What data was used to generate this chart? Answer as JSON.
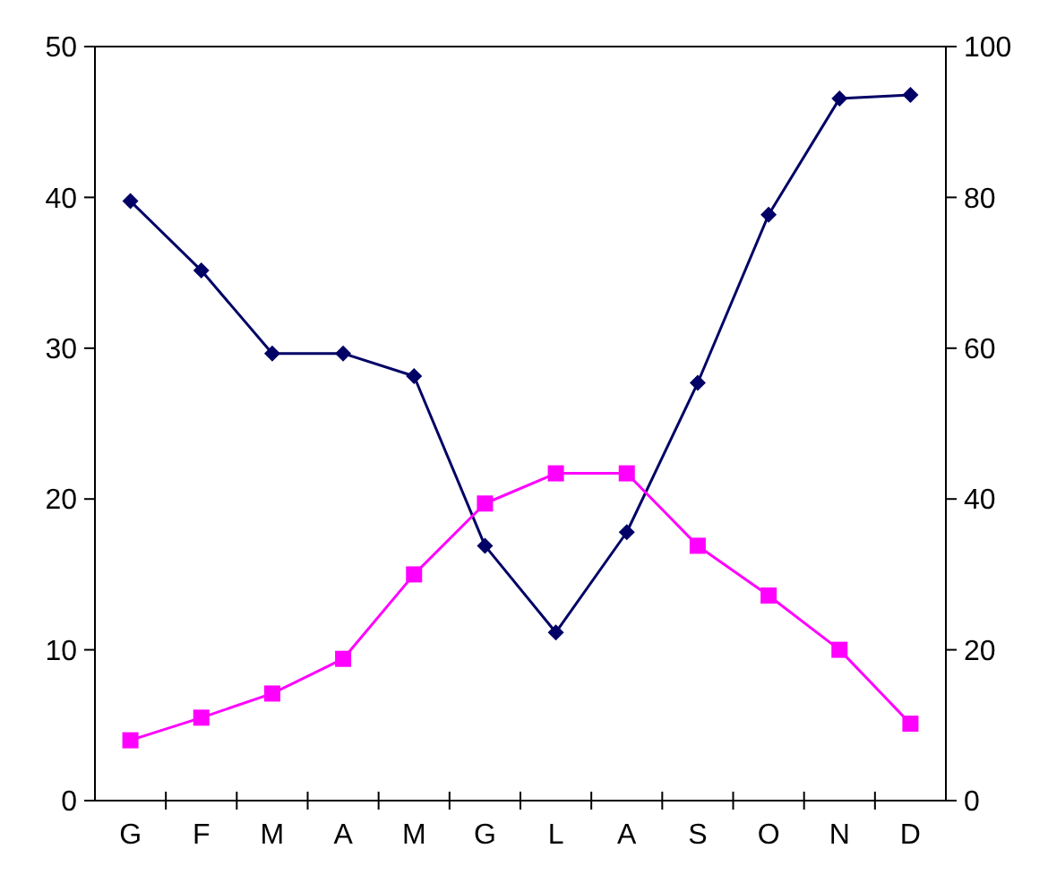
{
  "chart_data": {
    "type": "line",
    "categories": [
      "G",
      "F",
      "M",
      "A",
      "M",
      "G",
      "L",
      "A",
      "S",
      "O",
      "N",
      "D"
    ],
    "ylim": [
      0,
      50
    ],
    "yticks": [
      0,
      10,
      20,
      30,
      40,
      50
    ],
    "y2lim": [
      0,
      100
    ],
    "y2ticks": [
      0,
      20,
      40,
      60,
      80,
      100
    ],
    "grid": false,
    "series": [
      {
        "color": "#000066",
        "marker": "diamond",
        "axis": "y2",
        "values": [
          79.5,
          70.3,
          59.3,
          59.3,
          56.3,
          33.8,
          22.3,
          35.6,
          55.4,
          77.7,
          93.1,
          93.6
        ]
      },
      {
        "color": "#ff00ff",
        "marker": "square",
        "values": [
          4.0,
          5.5,
          7.1,
          9.4,
          15.0,
          19.7,
          21.7,
          21.7,
          16.9,
          13.6,
          10.0,
          5.1
        ]
      }
    ]
  }
}
